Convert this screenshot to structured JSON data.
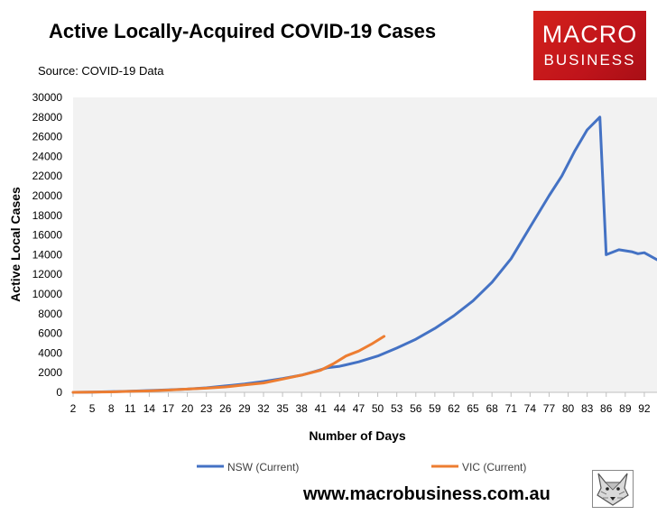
{
  "header": {
    "title": "Active Locally-Acquired COVID-19 Cases",
    "source": "Source: COVID-19 Data"
  },
  "logo": {
    "line1": "MACRO",
    "line2": "BUSINESS"
  },
  "footer": {
    "url": "www.macrobusiness.com.au"
  },
  "colors": {
    "nsw": "#4472c4",
    "vic": "#ed7d31",
    "plot_bg": "#f2f2f2"
  },
  "chart_data": {
    "type": "line",
    "title": "Active Locally-Acquired COVID-19 Cases",
    "xlabel": "Number of Days",
    "ylabel": "Active Local Cases",
    "xlim": [
      2,
      94
    ],
    "ylim": [
      0,
      30000
    ],
    "y_ticks": [
      0,
      2000,
      4000,
      6000,
      8000,
      10000,
      12000,
      14000,
      16000,
      18000,
      20000,
      22000,
      24000,
      26000,
      28000,
      30000
    ],
    "y_tick_labels": [
      "0",
      "2000",
      "4000",
      "6000",
      "8000",
      "10000",
      "12000",
      "14000",
      "16000",
      "18000",
      "20000",
      "22000",
      "24000",
      "26000",
      "28000",
      "30000"
    ],
    "x_ticks": [
      2,
      5,
      8,
      11,
      14,
      17,
      20,
      23,
      26,
      29,
      32,
      35,
      38,
      41,
      44,
      47,
      50,
      53,
      56,
      59,
      62,
      65,
      68,
      71,
      74,
      77,
      80,
      83,
      86,
      89,
      92
    ],
    "grid": false,
    "legend": "bottom",
    "series": [
      {
        "name": "NSW (Current)",
        "color": "#4472c4",
        "x": [
          2,
          5,
          8,
          11,
          14,
          17,
          20,
          23,
          26,
          29,
          32,
          35,
          38,
          40,
          42,
          44,
          47,
          50,
          53,
          56,
          59,
          62,
          65,
          68,
          71,
          74,
          77,
          79,
          81,
          83,
          85,
          86,
          88,
          90,
          91,
          92,
          94
        ],
        "y": [
          0,
          30,
          60,
          120,
          180,
          250,
          330,
          460,
          650,
          850,
          1100,
          1400,
          1750,
          2100,
          2500,
          2650,
          3100,
          3700,
          4500,
          5400,
          6500,
          7800,
          9300,
          11200,
          13600,
          16800,
          20000,
          22000,
          24500,
          26700,
          28000,
          14000,
          14500,
          14300,
          14100,
          14200,
          13500
        ]
      },
      {
        "name": "VIC (Current)",
        "color": "#ed7d31",
        "x": [
          2,
          5,
          8,
          11,
          14,
          17,
          20,
          23,
          26,
          29,
          32,
          35,
          38,
          41,
          43,
          45,
          47,
          49,
          51
        ],
        "y": [
          0,
          20,
          50,
          100,
          150,
          230,
          330,
          420,
          550,
          750,
          950,
          1350,
          1750,
          2250,
          2900,
          3700,
          4200,
          4900,
          5700
        ]
      }
    ]
  }
}
